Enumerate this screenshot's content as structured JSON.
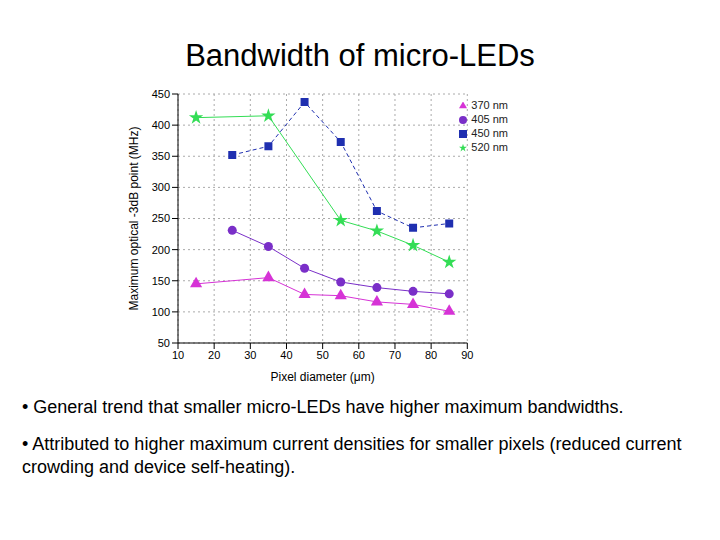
{
  "title": "Bandwidth of micro-LEDs",
  "chart_data": {
    "type": "line",
    "xlabel": "Pixel diameter (μm)",
    "ylabel": "Maximum optical -3dB point (MHz)",
    "xlim": [
      10,
      90
    ],
    "xticks": [
      10,
      20,
      30,
      40,
      50,
      60,
      70,
      80,
      90
    ],
    "ylim": [
      50,
      450
    ],
    "yticks": [
      50,
      100,
      150,
      200,
      250,
      300,
      350,
      400,
      450
    ],
    "grid": true,
    "legend": "upper right",
    "series": [
      {
        "name": "370 nm",
        "color": "#d633d6",
        "marker": "triangle",
        "line_style": "solid",
        "x": [
          15,
          35,
          45,
          55,
          65,
          75,
          85
        ],
        "values": [
          145,
          155,
          128,
          126,
          116,
          112,
          101
        ]
      },
      {
        "name": "405 nm",
        "color": "#7a2fc8",
        "marker": "circle",
        "line_style": "solid",
        "x": [
          25,
          35,
          45,
          55,
          65,
          75,
          85
        ],
        "values": [
          231,
          205,
          170,
          148,
          139,
          133,
          129
        ]
      },
      {
        "name": "450 nm",
        "color": "#1f2fb0",
        "marker": "square",
        "line_style": "dashed",
        "x": [
          25,
          35,
          45,
          55,
          65,
          75,
          85
        ],
        "values": [
          352,
          366,
          437,
          373,
          262,
          235,
          242
        ]
      },
      {
        "name": "520 nm",
        "color": "#33dd55",
        "marker": "star",
        "line_style": "solid",
        "x": [
          15,
          35,
          55,
          65,
          75,
          85
        ],
        "values": [
          412,
          415,
          247,
          230,
          207,
          180
        ]
      }
    ]
  },
  "bullets": [
    "• General trend that smaller micro-LEDs have higher maximum bandwidths.",
    "• Attributed to higher maximum current densities for smaller pixels (reduced current crowding and device self-heating)."
  ]
}
